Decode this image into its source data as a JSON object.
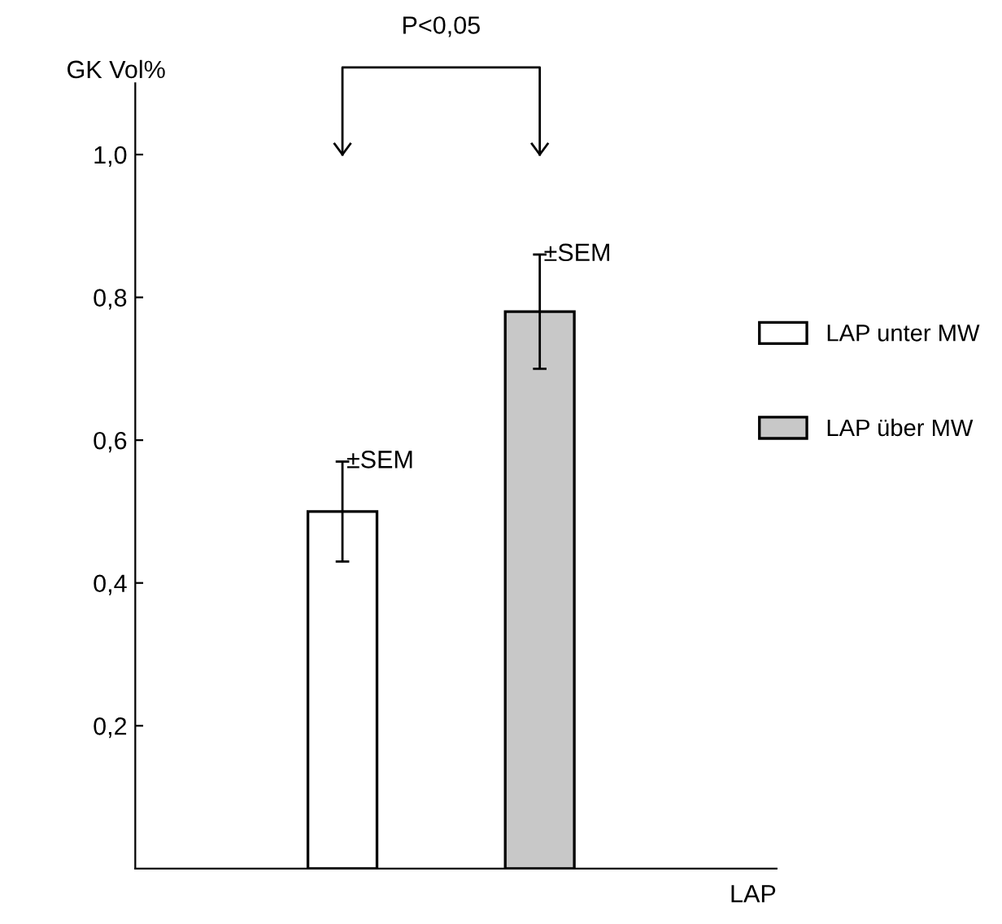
{
  "chart_data": {
    "type": "bar",
    "categories": [
      null,
      null
    ],
    "series": [
      {
        "name": "LAP unter MW",
        "color": "#ffffff",
        "values": [
          0.5,
          null
        ],
        "errors": [
          0.07,
          null
        ]
      },
      {
        "name": "LAP über MW",
        "color": "#c8c8c8",
        "values": [
          null,
          0.78
        ],
        "errors": [
          null,
          0.08
        ]
      }
    ],
    "xlabel": "LAP",
    "ylabel": "GK Vol%",
    "ylim": [
      0,
      1.1
    ],
    "yticks": [
      {
        "value": 0.2,
        "label": "0,2"
      },
      {
        "value": 0.4,
        "label": "0,4"
      },
      {
        "value": 0.6,
        "label": "0,6"
      },
      {
        "value": 0.8,
        "label": "0,8"
      },
      {
        "value": 1.0,
        "label": "1,0"
      }
    ],
    "annotations": [
      "P<0,05",
      "±SEM",
      "±SEM"
    ],
    "legend": "right",
    "grid": false
  }
}
